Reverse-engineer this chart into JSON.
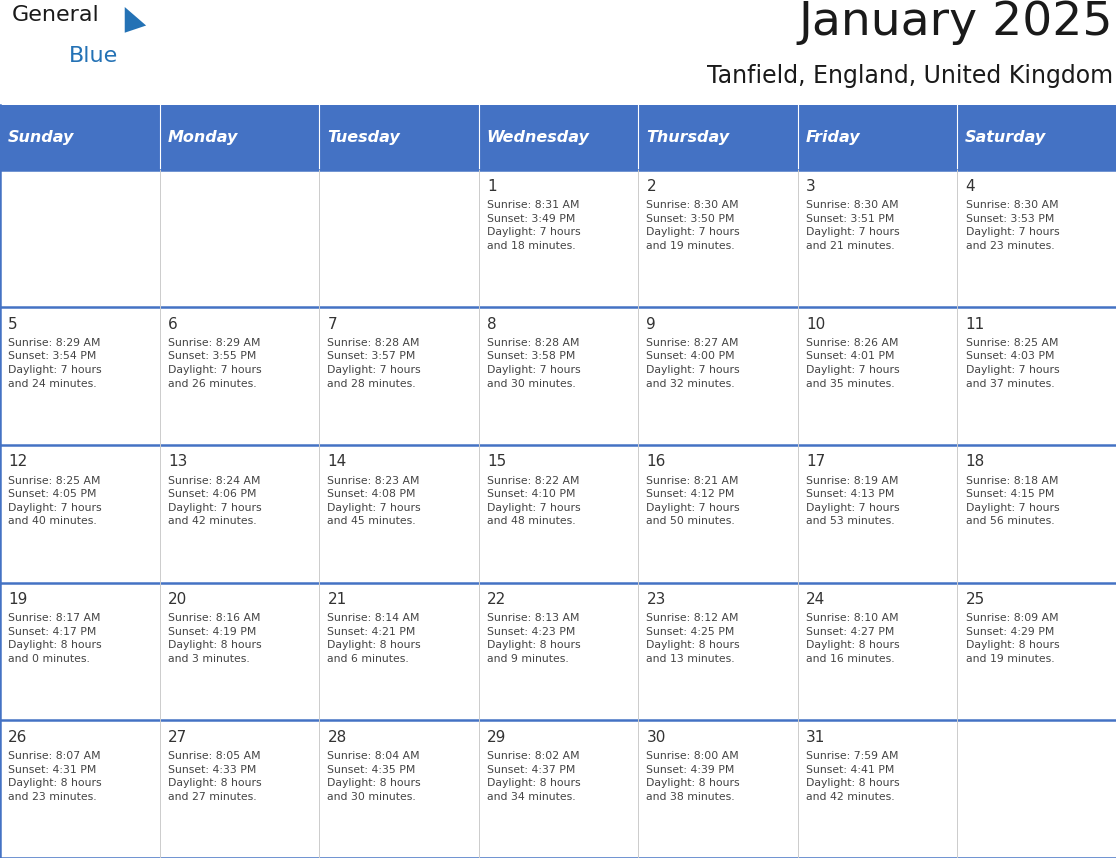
{
  "title": "January 2025",
  "subtitle": "Tanfield, England, United Kingdom",
  "days_of_week": [
    "Sunday",
    "Monday",
    "Tuesday",
    "Wednesday",
    "Thursday",
    "Friday",
    "Saturday"
  ],
  "header_bg_color": "#4472C4",
  "header_text_color": "#FFFFFF",
  "cell_bg_color": "#FFFFFF",
  "row_separator_color": "#4472C4",
  "col_separator_color": "#CCCCCC",
  "outer_border_color": "#4472C4",
  "day_number_color": "#333333",
  "text_color": "#444444",
  "title_color": "#1a1a1a",
  "subtitle_color": "#1a1a1a",
  "num_cols": 7,
  "num_rows": 5,
  "calendar_data": [
    [
      {
        "day": "",
        "info": ""
      },
      {
        "day": "",
        "info": ""
      },
      {
        "day": "",
        "info": ""
      },
      {
        "day": "1",
        "info": "Sunrise: 8:31 AM\nSunset: 3:49 PM\nDaylight: 7 hours\nand 18 minutes."
      },
      {
        "day": "2",
        "info": "Sunrise: 8:30 AM\nSunset: 3:50 PM\nDaylight: 7 hours\nand 19 minutes."
      },
      {
        "day": "3",
        "info": "Sunrise: 8:30 AM\nSunset: 3:51 PM\nDaylight: 7 hours\nand 21 minutes."
      },
      {
        "day": "4",
        "info": "Sunrise: 8:30 AM\nSunset: 3:53 PM\nDaylight: 7 hours\nand 23 minutes."
      }
    ],
    [
      {
        "day": "5",
        "info": "Sunrise: 8:29 AM\nSunset: 3:54 PM\nDaylight: 7 hours\nand 24 minutes."
      },
      {
        "day": "6",
        "info": "Sunrise: 8:29 AM\nSunset: 3:55 PM\nDaylight: 7 hours\nand 26 minutes."
      },
      {
        "day": "7",
        "info": "Sunrise: 8:28 AM\nSunset: 3:57 PM\nDaylight: 7 hours\nand 28 minutes."
      },
      {
        "day": "8",
        "info": "Sunrise: 8:28 AM\nSunset: 3:58 PM\nDaylight: 7 hours\nand 30 minutes."
      },
      {
        "day": "9",
        "info": "Sunrise: 8:27 AM\nSunset: 4:00 PM\nDaylight: 7 hours\nand 32 minutes."
      },
      {
        "day": "10",
        "info": "Sunrise: 8:26 AM\nSunset: 4:01 PM\nDaylight: 7 hours\nand 35 minutes."
      },
      {
        "day": "11",
        "info": "Sunrise: 8:25 AM\nSunset: 4:03 PM\nDaylight: 7 hours\nand 37 minutes."
      }
    ],
    [
      {
        "day": "12",
        "info": "Sunrise: 8:25 AM\nSunset: 4:05 PM\nDaylight: 7 hours\nand 40 minutes."
      },
      {
        "day": "13",
        "info": "Sunrise: 8:24 AM\nSunset: 4:06 PM\nDaylight: 7 hours\nand 42 minutes."
      },
      {
        "day": "14",
        "info": "Sunrise: 8:23 AM\nSunset: 4:08 PM\nDaylight: 7 hours\nand 45 minutes."
      },
      {
        "day": "15",
        "info": "Sunrise: 8:22 AM\nSunset: 4:10 PM\nDaylight: 7 hours\nand 48 minutes."
      },
      {
        "day": "16",
        "info": "Sunrise: 8:21 AM\nSunset: 4:12 PM\nDaylight: 7 hours\nand 50 minutes."
      },
      {
        "day": "17",
        "info": "Sunrise: 8:19 AM\nSunset: 4:13 PM\nDaylight: 7 hours\nand 53 minutes."
      },
      {
        "day": "18",
        "info": "Sunrise: 8:18 AM\nSunset: 4:15 PM\nDaylight: 7 hours\nand 56 minutes."
      }
    ],
    [
      {
        "day": "19",
        "info": "Sunrise: 8:17 AM\nSunset: 4:17 PM\nDaylight: 8 hours\nand 0 minutes."
      },
      {
        "day": "20",
        "info": "Sunrise: 8:16 AM\nSunset: 4:19 PM\nDaylight: 8 hours\nand 3 minutes."
      },
      {
        "day": "21",
        "info": "Sunrise: 8:14 AM\nSunset: 4:21 PM\nDaylight: 8 hours\nand 6 minutes."
      },
      {
        "day": "22",
        "info": "Sunrise: 8:13 AM\nSunset: 4:23 PM\nDaylight: 8 hours\nand 9 minutes."
      },
      {
        "day": "23",
        "info": "Sunrise: 8:12 AM\nSunset: 4:25 PM\nDaylight: 8 hours\nand 13 minutes."
      },
      {
        "day": "24",
        "info": "Sunrise: 8:10 AM\nSunset: 4:27 PM\nDaylight: 8 hours\nand 16 minutes."
      },
      {
        "day": "25",
        "info": "Sunrise: 8:09 AM\nSunset: 4:29 PM\nDaylight: 8 hours\nand 19 minutes."
      }
    ],
    [
      {
        "day": "26",
        "info": "Sunrise: 8:07 AM\nSunset: 4:31 PM\nDaylight: 8 hours\nand 23 minutes."
      },
      {
        "day": "27",
        "info": "Sunrise: 8:05 AM\nSunset: 4:33 PM\nDaylight: 8 hours\nand 27 minutes."
      },
      {
        "day": "28",
        "info": "Sunrise: 8:04 AM\nSunset: 4:35 PM\nDaylight: 8 hours\nand 30 minutes."
      },
      {
        "day": "29",
        "info": "Sunrise: 8:02 AM\nSunset: 4:37 PM\nDaylight: 8 hours\nand 34 minutes."
      },
      {
        "day": "30",
        "info": "Sunrise: 8:00 AM\nSunset: 4:39 PM\nDaylight: 8 hours\nand 38 minutes."
      },
      {
        "day": "31",
        "info": "Sunrise: 7:59 AM\nSunset: 4:41 PM\nDaylight: 8 hours\nand 42 minutes."
      },
      {
        "day": "",
        "info": ""
      }
    ]
  ],
  "logo_general_color": "#1a1a1a",
  "logo_blue_color": "#2472B5",
  "logo_triangle_color": "#2472B5"
}
